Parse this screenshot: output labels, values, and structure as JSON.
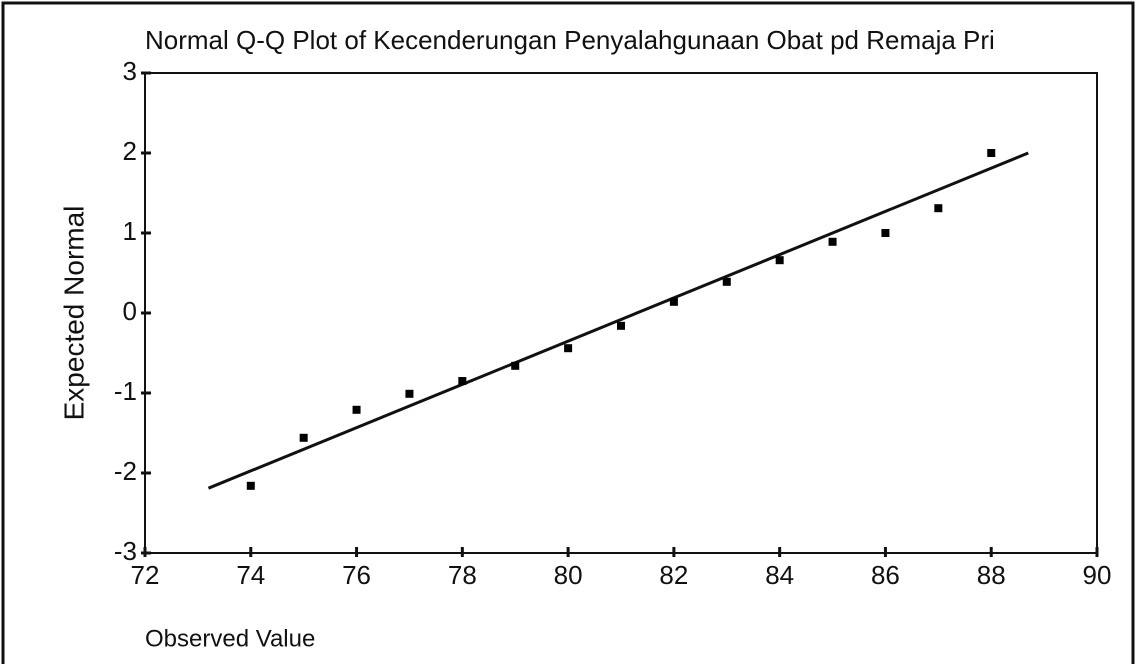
{
  "chart_data": {
    "type": "scatter",
    "title": "Normal Q-Q Plot of Kecenderungan Penyalahgunaan Obat pd Remaja Pri",
    "x_label": "Observed Value",
    "y_label": "Expected Normal",
    "x": [
      74,
      75,
      76,
      77,
      78,
      79,
      80,
      81,
      82,
      83,
      84,
      85,
      86,
      87,
      88
    ],
    "values": [
      -2.16,
      -1.56,
      -1.21,
      -1.01,
      -0.85,
      -0.66,
      -0.44,
      -0.16,
      0.14,
      0.39,
      0.66,
      0.89,
      1.0,
      1.31,
      2.0
    ],
    "color": "#000000",
    "reference_line": {
      "x": [
        73.2,
        88.7
      ],
      "y": [
        -2.19,
        2.0
      ]
    },
    "xlim": [
      72,
      90
    ],
    "xticks": [
      72,
      74,
      76,
      78,
      80,
      82,
      84,
      86,
      88,
      90
    ],
    "ylim": [
      -3,
      3
    ],
    "yticks": [
      -3,
      -2,
      -1,
      0,
      1,
      2,
      3
    ]
  }
}
